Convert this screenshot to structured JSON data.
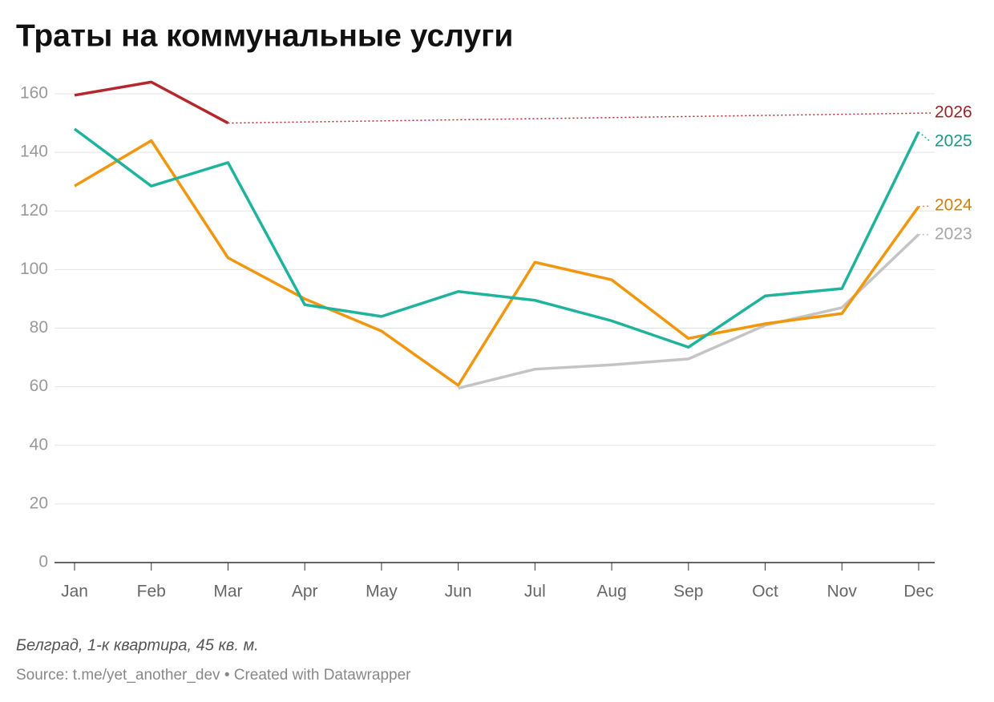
{
  "chart_data": {
    "type": "line",
    "title": "Траты на коммунальные услуги",
    "note": "Белград, 1-к квартира, 45 кв. м.",
    "source": "Source: t.me/yet_another_dev • Created with Datawrapper",
    "categories": [
      "Jan",
      "Feb",
      "Mar",
      "Apr",
      "May",
      "Jun",
      "Jul",
      "Aug",
      "Sep",
      "Oct",
      "Nov",
      "Dec"
    ],
    "series": [
      {
        "name": "2023",
        "color": "#c4c4c4",
        "values": [
          null,
          null,
          null,
          null,
          null,
          59.5,
          66,
          67.5,
          69.5,
          81,
          87,
          112
        ]
      },
      {
        "name": "2024",
        "color": "#f0960f",
        "values": [
          128.5,
          144,
          104,
          90,
          79,
          60.5,
          102.5,
          96.5,
          76.5,
          81.5,
          85,
          121.5
        ]
      },
      {
        "name": "2025",
        "color": "#1fb39c",
        "values": [
          148,
          128.5,
          136.5,
          88,
          84,
          92.5,
          89.5,
          82.5,
          73.5,
          91,
          93.5,
          147
        ]
      },
      {
        "name": "2026",
        "color": "#b5272b",
        "values": [
          159.5,
          164,
          150,
          null,
          null,
          null,
          null,
          null,
          null,
          null,
          null,
          null
        ]
      }
    ],
    "ylim": [
      0,
      160
    ],
    "yticks": [
      0,
      20,
      40,
      60,
      80,
      100,
      120,
      140,
      160
    ],
    "grid": true
  }
}
